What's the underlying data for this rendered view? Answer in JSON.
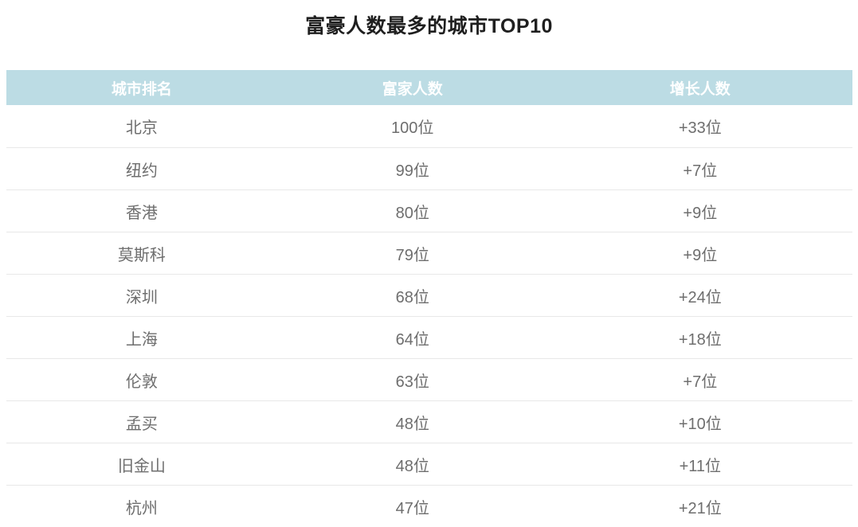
{
  "title": "富豪人数最多的城市TOP10",
  "table": {
    "headers": [
      "城市排名",
      "富家人数",
      "增长人数"
    ],
    "rows": [
      {
        "city": "北京",
        "rich_count": "100位",
        "growth": "+33位"
      },
      {
        "city": "纽约",
        "rich_count": "99位",
        "growth": "+7位"
      },
      {
        "city": "香港",
        "rich_count": "80位",
        "growth": "+9位"
      },
      {
        "city": "莫斯科",
        "rich_count": "79位",
        "growth": "+9位"
      },
      {
        "city": "深圳",
        "rich_count": "68位",
        "growth": "+24位"
      },
      {
        "city": "上海",
        "rich_count": "64位",
        "growth": "+18位"
      },
      {
        "city": "伦敦",
        "rich_count": "63位",
        "growth": "+7位"
      },
      {
        "city": "孟买",
        "rich_count": "48位",
        "growth": "+10位"
      },
      {
        "city": "旧金山",
        "rich_count": "48位",
        "growth": "+11位"
      },
      {
        "city": "杭州",
        "rich_count": "47位",
        "growth": "+21位"
      }
    ]
  },
  "colors": {
    "header_bg": "#bcdce4",
    "header_text": "#ffffff",
    "cell_text": "#6e6e6e",
    "title_text": "#1f1f1f",
    "divider": "#e8e8e8"
  }
}
